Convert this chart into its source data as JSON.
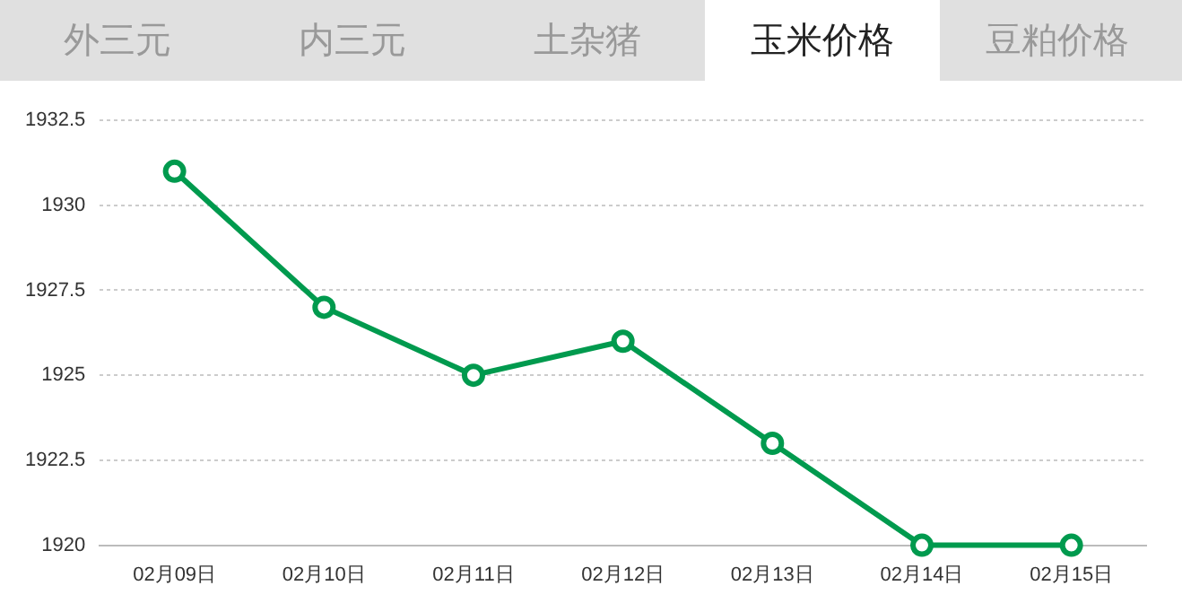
{
  "chart_data": {
    "type": "line",
    "title": "玉米价格",
    "annotations": [
      "外三元",
      "内三元",
      "土杂猪",
      "豆粕价格"
    ],
    "categories": [
      "02月09日",
      "02月10日",
      "02月11日",
      "02月12日",
      "02月13日",
      "02月14日",
      "02月15日"
    ],
    "series": [
      {
        "color": "#009a4e",
        "values": [
          1931,
          1927,
          1925,
          1926,
          1923,
          1920,
          1920
        ]
      }
    ],
    "ylim": [
      1920,
      1932.5
    ],
    "yticks": [
      1920,
      1922.5,
      1925,
      1927.5,
      1930,
      1932.5
    ],
    "grid": "y",
    "legend": false,
    "marker": "circle",
    "line_style": "solid"
  }
}
